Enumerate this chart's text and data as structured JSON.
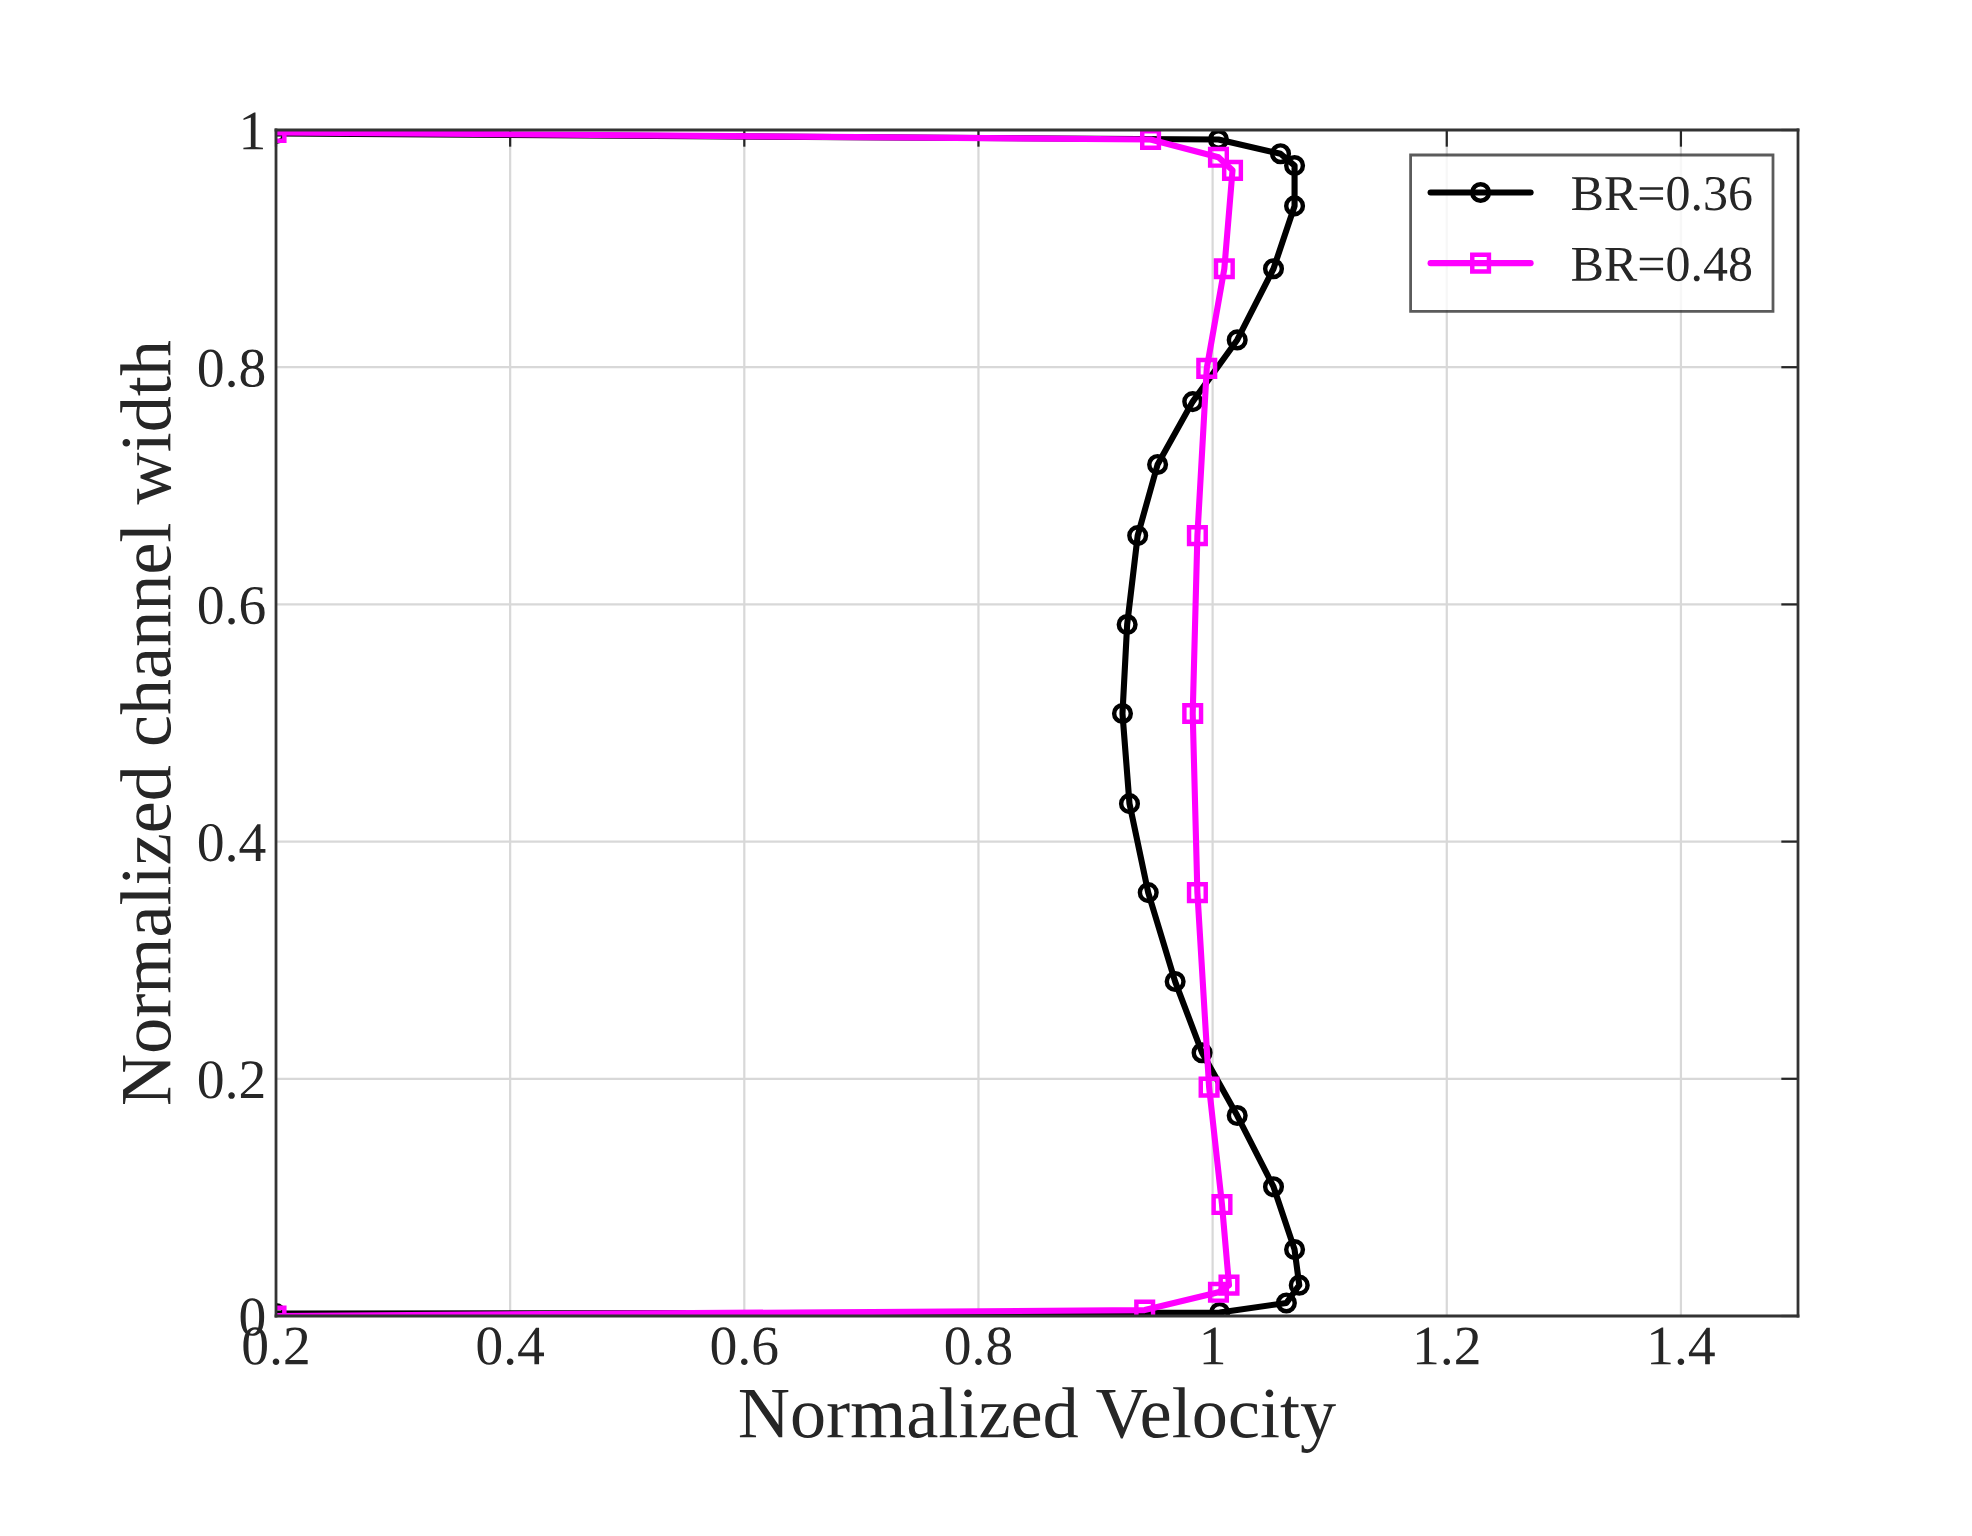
{
  "chart_data": {
    "type": "line",
    "xlabel": "Normalized Velocity",
    "ylabel": "Normalized channel width",
    "xlim": [
      0.2,
      1.5
    ],
    "ylim": [
      0,
      1
    ],
    "xticks": [
      0.2,
      0.4,
      0.6,
      0.8,
      1,
      1.2,
      1.4
    ],
    "yticks": [
      0,
      0.2,
      0.4,
      0.6,
      0.8,
      1
    ],
    "grid": true,
    "legend": "top right",
    "series": [
      {
        "name": "BR=0.36",
        "color": "#000000",
        "marker": "circle",
        "x": [
          0.2,
          1.005,
          1.058,
          1.07,
          1.07,
          1.052,
          1.021,
          0.983,
          0.953,
          0.936,
          0.927,
          0.923,
          0.929,
          0.945,
          0.968,
          0.991,
          1.021,
          1.052,
          1.07,
          1.074,
          1.063,
          1.006,
          0.2
        ],
        "values": [
          0.997,
          0.992,
          0.98,
          0.97,
          0.936,
          0.883,
          0.823,
          0.771,
          0.718,
          0.658,
          0.583,
          0.508,
          0.432,
          0.357,
          0.282,
          0.222,
          0.169,
          0.109,
          0.056,
          0.026,
          0.011,
          0.003,
          0.002
        ]
      },
      {
        "name": "BR=0.48",
        "color": "#ff00ff",
        "marker": "square",
        "x": [
          0.2,
          0.947,
          1.005,
          1.017,
          1.01,
          0.995,
          0.987,
          0.983,
          0.987,
          0.997,
          1.008,
          1.014,
          1.005,
          0.942,
          0.2
        ],
        "values": [
          0.998,
          0.992,
          0.977,
          0.966,
          0.883,
          0.799,
          0.658,
          0.508,
          0.357,
          0.193,
          0.094,
          0.026,
          0.02,
          0.005,
          0.0
        ]
      }
    ]
  }
}
